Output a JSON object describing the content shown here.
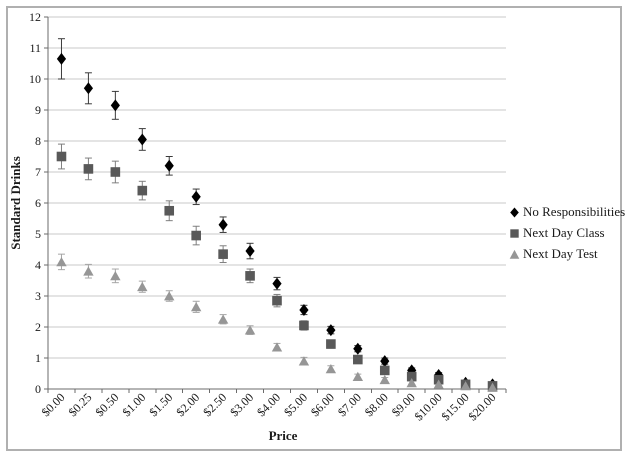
{
  "chart_data": {
    "type": "scatter",
    "title": "",
    "xlabel": "Price",
    "ylabel": "Standard Drinks",
    "categories": [
      "$0.00",
      "$0.25",
      "$0.50",
      "$1.00",
      "$1.50",
      "$2.00",
      "$2.50",
      "$3.00",
      "$4.00",
      "$5.00",
      "$6.00",
      "$7.00",
      "$8.00",
      "$9.00",
      "$10.00",
      "$15.00",
      "$20.00"
    ],
    "yticks": [
      0,
      1,
      2,
      3,
      4,
      5,
      6,
      7,
      8,
      9,
      10,
      11,
      12
    ],
    "ylim": [
      0,
      12
    ],
    "grid": "horizontal",
    "legend_position": "right",
    "error_bars": true,
    "series": [
      {
        "name": "No Responsibilities",
        "marker": "diamond-icon",
        "color": "#000000",
        "error_color": "#3a3a3a",
        "values": [
          10.65,
          9.7,
          9.15,
          8.05,
          7.2,
          6.2,
          5.3,
          4.45,
          3.4,
          2.55,
          1.9,
          1.3,
          0.9,
          0.6,
          0.45,
          0.2,
          0.15
        ],
        "errors": [
          0.65,
          0.5,
          0.45,
          0.35,
          0.3,
          0.25,
          0.25,
          0.25,
          0.2,
          0.15,
          0.12,
          0.1,
          0.1,
          0.08,
          0.08,
          0.06,
          0.05
        ]
      },
      {
        "name": "Next Day Class",
        "marker": "square-icon",
        "color": "#595959",
        "error_color": "#7f7f7f",
        "values": [
          7.5,
          7.1,
          7.0,
          6.4,
          5.75,
          4.95,
          4.35,
          3.65,
          2.85,
          2.05,
          1.45,
          0.95,
          0.6,
          0.4,
          0.3,
          0.15,
          0.1
        ],
        "errors": [
          0.4,
          0.35,
          0.35,
          0.3,
          0.32,
          0.3,
          0.27,
          0.22,
          0.2,
          0.15,
          0.13,
          0.1,
          0.09,
          0.08,
          0.06,
          0.05,
          0.04
        ]
      },
      {
        "name": "Next Day Test",
        "marker": "triangle-icon",
        "color": "#969696",
        "error_color": "#a6a6a6",
        "values": [
          4.1,
          3.8,
          3.65,
          3.3,
          3.0,
          2.65,
          2.25,
          1.9,
          1.35,
          0.9,
          0.65,
          0.4,
          0.3,
          0.2,
          0.15,
          0.1,
          0.05
        ],
        "errors": [
          0.25,
          0.22,
          0.22,
          0.18,
          0.17,
          0.18,
          0.15,
          0.14,
          0.12,
          0.12,
          0.1,
          0.08,
          0.07,
          0.06,
          0.05,
          0.04,
          0.03
        ]
      }
    ],
    "colors": {
      "grid": "#c8c8c8",
      "axis": "#6b6b6b",
      "tick_text": "#1a1a1a",
      "frame": "#b0b0b0"
    }
  }
}
